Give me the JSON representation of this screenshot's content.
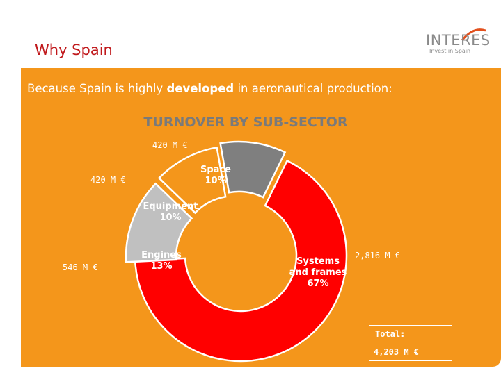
{
  "header": {
    "title": "Why Spain",
    "logo_text": "INTERES",
    "logo_tagline": "Invest in Spain"
  },
  "subtitle": {
    "prefix": "Because Spain is highly ",
    "bold": "developed",
    "suffix": " in aeronautical production:"
  },
  "colors": {
    "panel": "#f4961b",
    "header_title": "#c0181b"
  },
  "chart_data": {
    "type": "pie",
    "variant": "donut",
    "title": "TURNOVER BY SUB-SECTOR",
    "slices": [
      {
        "name": "Space",
        "label_lines": [
          "Space",
          "10%"
        ],
        "percent": 10,
        "value_label": "420 M €",
        "value": 420,
        "color": "#7f7f7f",
        "label_color": "#ffffff",
        "exploded": true
      },
      {
        "name": "Systems and frames",
        "label_lines": [
          "Systems",
          "and frames",
          "67%"
        ],
        "percent": 67,
        "value_label": "2,816 M €",
        "value": 2816,
        "color": "#ff0000",
        "label_color": "#ffffff",
        "exploded": false
      },
      {
        "name": "Engines",
        "label_lines": [
          "Engines",
          "13%"
        ],
        "percent": 13,
        "value_label": "546 M €",
        "value": 546,
        "color": "#c0c0c0",
        "label_color": "#ffffff",
        "exploded": true
      },
      {
        "name": "Equipment",
        "label_lines": [
          "Equipment",
          "10%"
        ],
        "percent": 10,
        "value_label": "420 M €",
        "value": 420,
        "color": "#f4961b",
        "label_color": "#ffffff",
        "exploded": true
      }
    ],
    "total_label": "Total:",
    "total_value": "4,203 M €"
  }
}
